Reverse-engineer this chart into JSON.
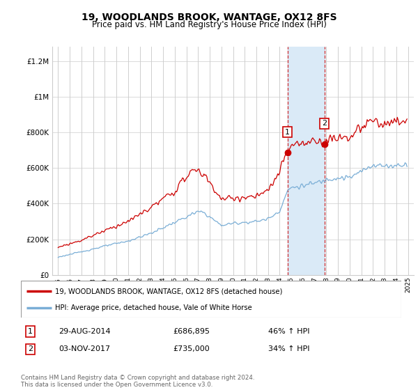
{
  "title": "19, WOODLANDS BROOK, WANTAGE, OX12 8FS",
  "subtitle": "Price paid vs. HM Land Registry's House Price Index (HPI)",
  "title_fontsize": 10,
  "subtitle_fontsize": 8.5,
  "ylabel_ticks": [
    "£0",
    "£200K",
    "£400K",
    "£600K",
    "£800K",
    "£1M",
    "£1.2M"
  ],
  "ytick_vals": [
    0,
    200000,
    400000,
    600000,
    800000,
    1000000,
    1200000
  ],
  "ylim": [
    0,
    1280000
  ],
  "xlim": [
    1994.5,
    2025.5
  ],
  "xlabel_years": [
    1995,
    1996,
    1997,
    1998,
    1999,
    2000,
    2001,
    2002,
    2003,
    2004,
    2005,
    2006,
    2007,
    2008,
    2009,
    2010,
    2011,
    2012,
    2013,
    2014,
    2015,
    2016,
    2017,
    2018,
    2019,
    2020,
    2021,
    2022,
    2023,
    2024,
    2025
  ],
  "sale1_year": 2014.66,
  "sale1_price": 686895,
  "sale2_year": 2017.84,
  "sale2_price": 735000,
  "shade_color": "#daeaf7",
  "red_line_color": "#cc0000",
  "blue_line_color": "#7aaed6",
  "legend1_label": "19, WOODLANDS BROOK, WANTAGE, OX12 8FS (detached house)",
  "legend2_label": "HPI: Average price, detached house, Vale of White Horse",
  "transaction1_date": "29-AUG-2014",
  "transaction1_price": "£686,895",
  "transaction1_hpi": "46% ↑ HPI",
  "transaction2_date": "03-NOV-2017",
  "transaction2_price": "£735,000",
  "transaction2_hpi": "34% ↑ HPI",
  "footer": "Contains HM Land Registry data © Crown copyright and database right 2024.\nThis data is licensed under the Open Government Licence v3.0."
}
